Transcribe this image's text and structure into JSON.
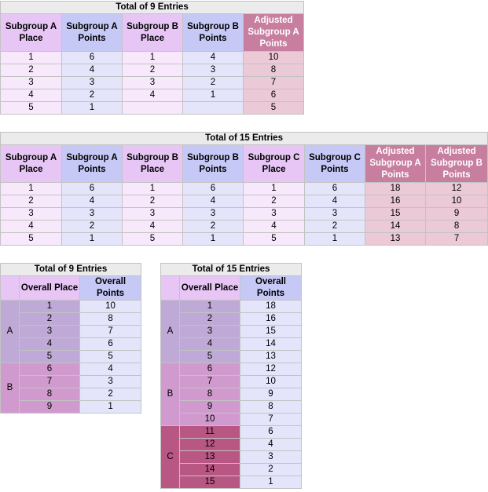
{
  "table1": {
    "caption": "Total of 9 Entries",
    "headers": [
      "Subgroup A Place",
      "Subgroup A Points",
      "Subgroup B Place",
      "Subgroup B Points",
      "Adjusted Subgroup A Points"
    ],
    "rows": [
      [
        "1",
        "6",
        "1",
        "4",
        "10"
      ],
      [
        "2",
        "4",
        "2",
        "3",
        "8"
      ],
      [
        "3",
        "3",
        "3",
        "2",
        "7"
      ],
      [
        "4",
        "2",
        "4",
        "1",
        "6"
      ],
      [
        "5",
        "1",
        "",
        "",
        "5"
      ]
    ]
  },
  "table2": {
    "caption": "Total of 15 Entries",
    "headers": [
      "Subgroup A Place",
      "Subgroup A Points",
      "Subgroup B Place",
      "Subgroup B Points",
      "Subgroup C Place",
      "Subgroup C Points",
      "Adjusted Subgroup A Points",
      "Adjusted Subgroup B Points"
    ],
    "rows": [
      [
        "1",
        "6",
        "1",
        "6",
        "1",
        "6",
        "18",
        "12"
      ],
      [
        "2",
        "4",
        "2",
        "4",
        "2",
        "4",
        "16",
        "10"
      ],
      [
        "3",
        "3",
        "3",
        "3",
        "3",
        "3",
        "15",
        "9"
      ],
      [
        "4",
        "2",
        "4",
        "2",
        "4",
        "2",
        "14",
        "8"
      ],
      [
        "5",
        "1",
        "5",
        "1",
        "5",
        "1",
        "13",
        "7"
      ]
    ]
  },
  "table3": {
    "caption": "Total of 9 Entries",
    "headers": [
      "Overall Place",
      "Overall Points"
    ],
    "groups": [
      {
        "label": "A",
        "rows": [
          [
            "1",
            "10"
          ],
          [
            "2",
            "8"
          ],
          [
            "3",
            "7"
          ],
          [
            "4",
            "6"
          ],
          [
            "5",
            "5"
          ]
        ]
      },
      {
        "label": "B",
        "rows": [
          [
            "6",
            "4"
          ],
          [
            "7",
            "3"
          ],
          [
            "8",
            "2"
          ],
          [
            "9",
            "1"
          ]
        ]
      }
    ]
  },
  "table4": {
    "caption": "Total of 15 Entries",
    "headers": [
      "Overall Place",
      "Overall Points"
    ],
    "groups": [
      {
        "label": "A",
        "rows": [
          [
            "1",
            "18"
          ],
          [
            "2",
            "16"
          ],
          [
            "3",
            "15"
          ],
          [
            "4",
            "14"
          ],
          [
            "5",
            "13"
          ]
        ]
      },
      {
        "label": "B",
        "rows": [
          [
            "6",
            "12"
          ],
          [
            "7",
            "10"
          ],
          [
            "8",
            "9"
          ],
          [
            "9",
            "8"
          ],
          [
            "10",
            "7"
          ]
        ]
      },
      {
        "label": "C",
        "rows": [
          [
            "11",
            "6"
          ],
          [
            "12",
            "4"
          ],
          [
            "13",
            "3"
          ],
          [
            "14",
            "2"
          ],
          [
            "15",
            "1"
          ]
        ]
      }
    ]
  }
}
